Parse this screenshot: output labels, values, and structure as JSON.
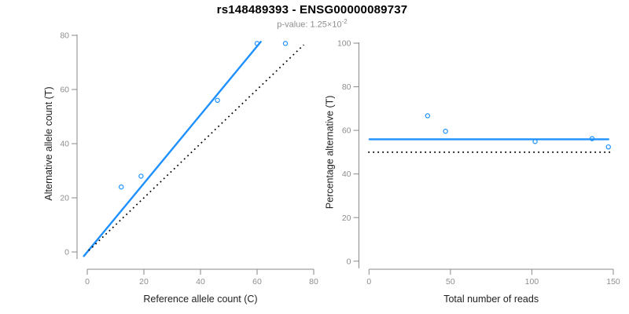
{
  "header": {
    "title": "rs148489393 - ENSG00000089737",
    "subtitle_prefix": "p-value: 1.25×10",
    "subtitle_exponent": "-2"
  },
  "colors": {
    "blue": "#1E90FF",
    "black": "#000000",
    "axis_gray": "#8a8a8a",
    "tick_label_gray": "#8e8e8e",
    "axis_title_dark": "#1f1f1f",
    "subtitle_gray": "#8e8e8e"
  },
  "chart_data": [
    {
      "type": "scatter",
      "name": "allele-counts-scatter",
      "title": "",
      "xlabel": "Reference allele count (C)",
      "ylabel": "Alternative allele count (T)",
      "xlim": [
        0,
        80
      ],
      "ylim": [
        0,
        80
      ],
      "xticks": [
        0,
        20,
        40,
        60,
        80
      ],
      "yticks": [
        0,
        20,
        40,
        60,
        80
      ],
      "grid": false,
      "legend": "none",
      "points": [
        [
          12,
          24
        ],
        [
          19,
          28
        ],
        [
          46,
          56
        ],
        [
          60,
          77
        ],
        [
          70,
          77
        ]
      ],
      "lines": [
        {
          "name": "fit-line",
          "style": "solid",
          "color": "blue",
          "endpoints": [
            [
              -1.2,
              -1.5
            ],
            [
              61.3,
              77.6
            ]
          ]
        },
        {
          "name": "identity-line",
          "style": "dotted",
          "color": "black",
          "endpoints": [
            [
              0.5,
              0.5
            ],
            [
              76.5,
              76.5
            ]
          ]
        }
      ]
    },
    {
      "type": "scatter",
      "name": "percentage-vs-reads-scatter",
      "title": "",
      "xlabel": "Total number of reads",
      "ylabel": "Percentage alternative (T)",
      "xlim": [
        0,
        150
      ],
      "ylim": [
        0,
        100
      ],
      "xticks": [
        0,
        50,
        100,
        150
      ],
      "yticks": [
        0,
        20,
        40,
        60,
        80,
        100
      ],
      "grid": false,
      "legend": "none",
      "points": [
        [
          36,
          66.7
        ],
        [
          47,
          59.6
        ],
        [
          102,
          54.9
        ],
        [
          137,
          56.2
        ],
        [
          147,
          52.4
        ]
      ],
      "lines": [
        {
          "name": "fit-line",
          "style": "solid",
          "color": "blue",
          "endpoints": [
            [
              0.3,
              55.9
            ],
            [
              147,
              55.9
            ]
          ]
        },
        {
          "name": "identity-line",
          "style": "dotted",
          "color": "black",
          "endpoints": [
            [
              -0.5,
              50
            ],
            [
              148.5,
              50
            ]
          ]
        }
      ]
    }
  ]
}
